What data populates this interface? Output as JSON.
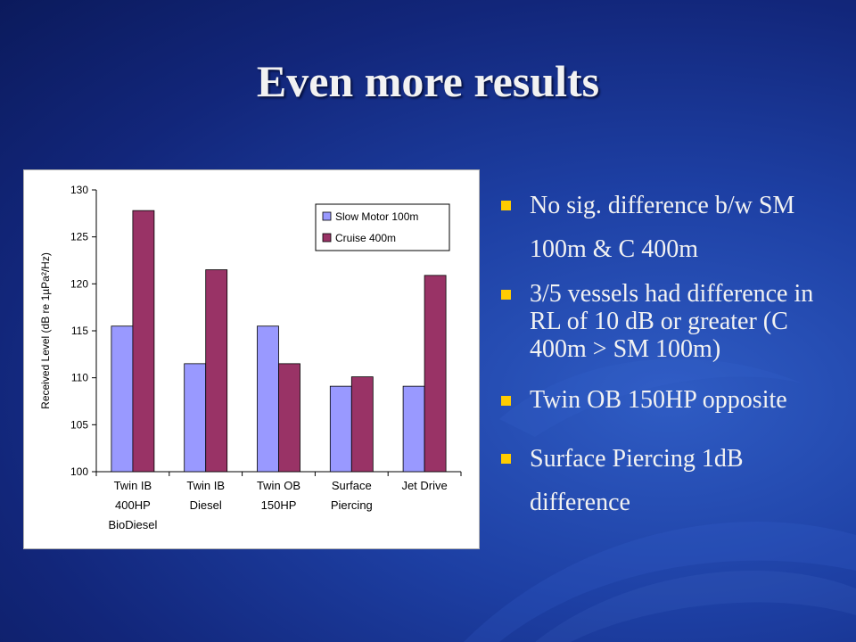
{
  "slide": {
    "title": "Even more results",
    "bullets": [
      "No sig. difference b/w SM 100m & C 400m",
      "3/5 vessels had difference in RL of 10 dB or greater (C 400m > SM 100m)",
      "Twin OB 150HP opposite",
      "Surface Piercing 1dB difference"
    ],
    "colors": {
      "background": "#1d3fa3",
      "bullet_marker": "#ffcc00",
      "text": "#f2f2f2"
    }
  },
  "chart_data": {
    "type": "bar",
    "categories": [
      [
        "Twin IB",
        "400HP",
        "BioDiesel"
      ],
      [
        "Twin IB",
        "Diesel"
      ],
      [
        "Twin OB",
        "150HP"
      ],
      [
        "Surface",
        "Piercing"
      ],
      [
        "Jet Drive"
      ]
    ],
    "series": [
      {
        "name": "Slow Motor 100m",
        "color": "#9999ff",
        "values": [
          115.5,
          111.5,
          115.5,
          109.1,
          109.1
        ]
      },
      {
        "name": "Cruise 400m",
        "color": "#993366",
        "values": [
          127.8,
          121.5,
          111.5,
          110.1,
          120.9
        ]
      }
    ],
    "ylabel": "Received Level (dB re 1µPa²/Hz)",
    "xlabel": "",
    "ylim": [
      100,
      130
    ],
    "yticks": [
      100,
      105,
      110,
      115,
      120,
      125,
      130
    ],
    "grid": false,
    "legend_position": "top-right"
  }
}
